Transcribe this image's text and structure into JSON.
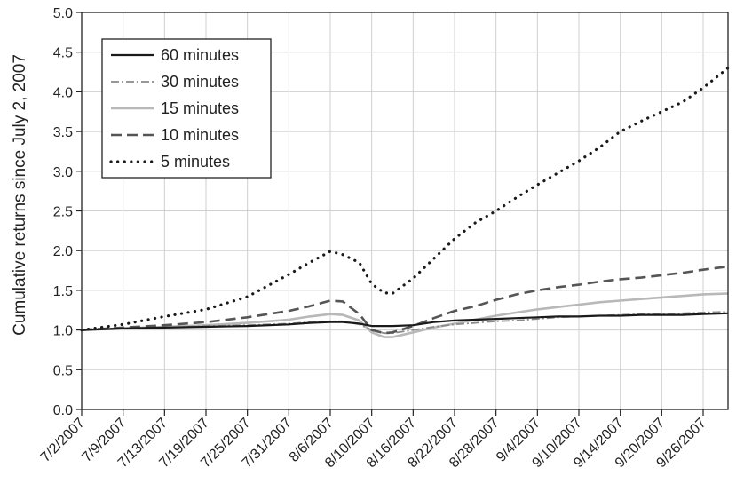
{
  "chart_data": {
    "type": "line",
    "title": "",
    "xlabel": "",
    "ylabel": "Cumulative returns since July 2, 2007",
    "ylim": [
      0.0,
      5.0
    ],
    "yticks": [
      "0.0",
      "0.5",
      "1.0",
      "1.5",
      "2.0",
      "2.5",
      "3.0",
      "3.5",
      "4.0",
      "4.5",
      "5.0"
    ],
    "xticks": [
      "7/2/2007",
      "7/9/2007",
      "7/13/2007",
      "7/19/2007",
      "7/25/2007",
      "7/31/2007",
      "8/6/2007",
      "8/10/2007",
      "8/16/2007",
      "8/22/2007",
      "8/28/2007",
      "9/4/2007",
      "9/10/2007",
      "9/14/2007",
      "9/20/2007",
      "9/26/2007"
    ],
    "x_positions": [
      0,
      1,
      2,
      3,
      4,
      5,
      6,
      7,
      8,
      9,
      10,
      11,
      12,
      13,
      14,
      15
    ],
    "xlim": [
      0,
      15.6
    ],
    "grid": true,
    "legend_position": "top-left",
    "x": [
      0,
      1,
      2,
      3,
      4,
      5,
      5.5,
      6,
      6.3,
      6.7,
      7,
      7.3,
      7.5,
      8,
      8.5,
      9,
      9.5,
      10,
      10.5,
      11,
      11.5,
      12,
      12.5,
      13,
      13.5,
      14,
      14.5,
      15,
      15.6
    ],
    "series": [
      {
        "name": "60 minutes",
        "style": "solid",
        "color": "#1a1a1a",
        "values": [
          1.0,
          1.02,
          1.03,
          1.04,
          1.05,
          1.07,
          1.09,
          1.1,
          1.1,
          1.08,
          1.05,
          1.05,
          1.05,
          1.06,
          1.1,
          1.12,
          1.13,
          1.14,
          1.15,
          1.16,
          1.17,
          1.17,
          1.18,
          1.18,
          1.19,
          1.19,
          1.19,
          1.2,
          1.21
        ]
      },
      {
        "name": "30 minutes",
        "style": "dashdot",
        "color": "#8a8a8a",
        "values": [
          1.0,
          1.02,
          1.03,
          1.05,
          1.06,
          1.08,
          1.1,
          1.11,
          1.11,
          1.07,
          1.0,
          0.96,
          0.96,
          1.0,
          1.04,
          1.07,
          1.09,
          1.11,
          1.12,
          1.14,
          1.16,
          1.17,
          1.18,
          1.19,
          1.2,
          1.2,
          1.21,
          1.22,
          1.23
        ]
      },
      {
        "name": "15 minutes",
        "style": "solid-light",
        "color": "#b8b8b8",
        "values": [
          1.0,
          1.02,
          1.04,
          1.06,
          1.09,
          1.13,
          1.17,
          1.2,
          1.19,
          1.12,
          0.97,
          0.91,
          0.91,
          0.97,
          1.03,
          1.08,
          1.13,
          1.18,
          1.22,
          1.26,
          1.29,
          1.32,
          1.35,
          1.37,
          1.39,
          1.41,
          1.43,
          1.45,
          1.46
        ]
      },
      {
        "name": "10 minutes",
        "style": "dashed",
        "color": "#555555",
        "values": [
          1.0,
          1.03,
          1.06,
          1.1,
          1.16,
          1.24,
          1.3,
          1.37,
          1.36,
          1.2,
          1.0,
          0.96,
          0.97,
          1.05,
          1.15,
          1.24,
          1.3,
          1.38,
          1.45,
          1.5,
          1.54,
          1.57,
          1.61,
          1.64,
          1.66,
          1.69,
          1.72,
          1.76,
          1.8
        ]
      },
      {
        "name": "5 minutes",
        "style": "dotted",
        "color": "#1a1a1a",
        "values": [
          1.0,
          1.07,
          1.17,
          1.26,
          1.42,
          1.7,
          1.85,
          1.99,
          1.95,
          1.85,
          1.58,
          1.47,
          1.46,
          1.65,
          1.9,
          2.15,
          2.35,
          2.5,
          2.67,
          2.83,
          2.98,
          3.13,
          3.3,
          3.5,
          3.63,
          3.75,
          3.87,
          4.05,
          4.3
        ]
      }
    ]
  }
}
